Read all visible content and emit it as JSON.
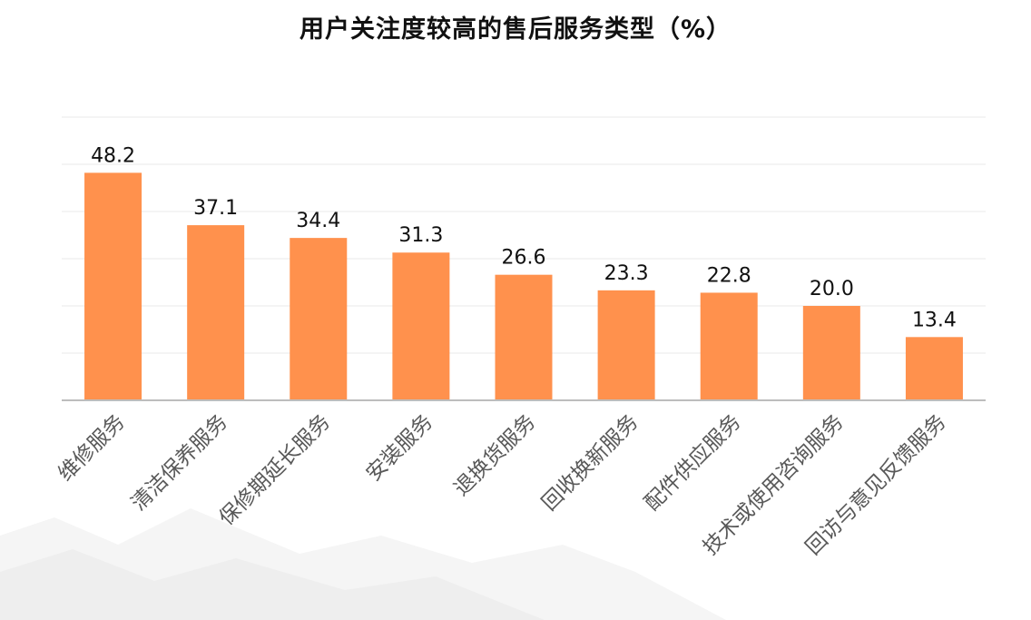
{
  "chart_data": {
    "type": "bar",
    "title": "用户关注度较高的售后服务类型（%）",
    "xlabel": "",
    "ylabel": "",
    "categories": [
      "维修服务",
      "清洁保养服务",
      "保修期延长服务",
      "安装服务",
      "退换货服务",
      "回收换新服务",
      "配件供应服务",
      "技术或使用咨询服务",
      "回访与意见反馈服务"
    ],
    "values": [
      48.2,
      37.1,
      34.4,
      31.3,
      26.6,
      23.3,
      22.8,
      20.0,
      13.4
    ],
    "value_labels": [
      "48.2",
      "37.1",
      "34.4",
      "31.3",
      "26.6",
      "23.3",
      "22.8",
      "20.0",
      "13.4"
    ],
    "ylim": [
      0,
      60
    ],
    "grid": true,
    "legend": "none",
    "bar_color": "#ff914d",
    "gridline_color": "#e9e9e9",
    "axis_color": "#bdbdbd"
  }
}
